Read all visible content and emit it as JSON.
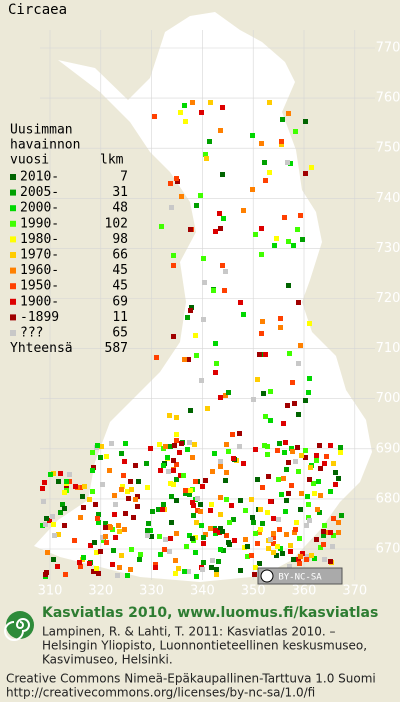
{
  "title": "Circaea",
  "legend": {
    "header": [
      "Uusimman",
      "havainnon",
      "vuosi"
    ],
    "count_header": "lkm",
    "rows": [
      {
        "label": "2010-",
        "count": 7,
        "color": "#006400"
      },
      {
        "label": "2005-",
        "count": 31,
        "color": "#00a000"
      },
      {
        "label": "2000-",
        "count": 48,
        "color": "#00d800"
      },
      {
        "label": "1990-",
        "count": 102,
        "color": "#40ff00"
      },
      {
        "label": "1980-",
        "count": 98,
        "color": "#ffff00"
      },
      {
        "label": "1970-",
        "count": 66,
        "color": "#ffcc00"
      },
      {
        "label": "1960-",
        "count": 45,
        "color": "#ff8000"
      },
      {
        "label": "1950-",
        "count": 45,
        "color": "#ff4000"
      },
      {
        "label": "1900-",
        "count": 69,
        "color": "#dd0000"
      },
      {
        "label": "-1899",
        "count": 11,
        "color": "#a00000"
      },
      {
        "label": "???",
        "count": 65,
        "color": "#c8c8c8"
      }
    ],
    "total_label": "Yhteensä",
    "total": 587
  },
  "grid": {
    "northing": [
      770,
      760,
      750,
      740,
      730,
      720,
      710,
      700,
      690,
      680,
      670
    ],
    "easting": [
      310,
      320,
      330,
      340,
      350,
      360,
      370
    ]
  },
  "license_badge": "BY-NC-SA",
  "footer": {
    "title": "Kasviatlas 2010, www.luomus.fi/kasviatlas",
    "citation": [
      "Lampinen, R. & Lahti, T. 2011: Kasviatlas 2010. –",
      "Helsingin Yliopisto, Luonnontieteellinen keskusmuseo,",
      "Kasvimuseo, Helsinki."
    ],
    "license": [
      "Creative Commons Nimeä-Epäkaupallinen-Tarttuva 1.0 Suomi",
      "http://creativecommons.org/licenses/by-nc-sa/1.0/fi"
    ]
  }
}
